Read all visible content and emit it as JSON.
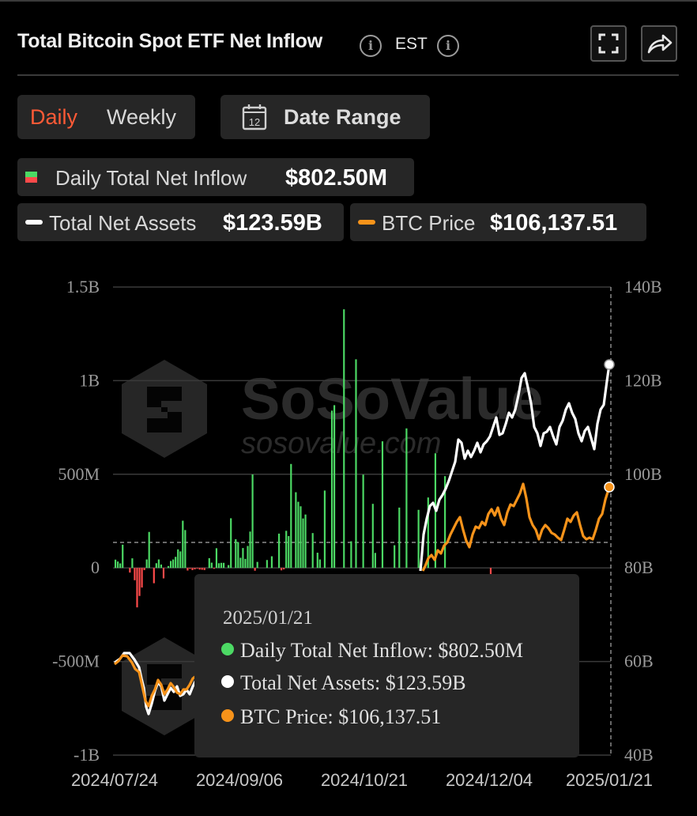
{
  "header": {
    "title": "Total Bitcoin Spot ETF Net Inflow",
    "timezone": "EST",
    "info_icon": "i"
  },
  "toggle": {
    "daily": "Daily",
    "weekly": "Weekly",
    "active": "daily"
  },
  "date_range": {
    "label": "Date Range",
    "calendar_day": "12"
  },
  "legend": {
    "daily_inflow": {
      "label": "Daily Total Net Inflow",
      "value": "$802.50M"
    },
    "total_assets": {
      "label": "Total Net Assets",
      "value": "$123.59B"
    },
    "btc_price": {
      "label": "BTC Price",
      "value": "$106,137.51"
    }
  },
  "watermark": {
    "brand": "SoSoValue",
    "url": "sosovalue.com"
  },
  "tooltip": {
    "date": "2025/01/21",
    "rows": [
      {
        "text": "Daily Total Net Inflow: $802.50M"
      },
      {
        "text": "Total Net Assets: $123.59B"
      },
      {
        "text": "BTC Price: $106,137.51"
      }
    ]
  },
  "colors": {
    "positive": "#4cd964",
    "negative": "#ff4a4a",
    "assets_line": "#ffffff",
    "price_line": "#f7931a",
    "active_toggle": "#ff5a36"
  },
  "chart_data": {
    "type": "bar",
    "left_axis": {
      "ticks": [
        "1.5B",
        "1B",
        "500M",
        "0",
        "-500M",
        "-1B"
      ],
      "range": [
        -1.0,
        1.5
      ],
      "unit": "B"
    },
    "right_axis": {
      "ticks": [
        "140B",
        "120B",
        "100B",
        "80B",
        "60B",
        "40B"
      ],
      "range": [
        40,
        140
      ],
      "unit": "B"
    },
    "x_labels": [
      "2024/07/24",
      "2024/09/06",
      "2024/10/21",
      "2024/12/04",
      "2025/01/21"
    ],
    "series": [
      {
        "name": "Daily Total Net Inflow",
        "kind": "bar",
        "values": [
          0.044,
          0.034,
          0.024,
          0.124,
          0.0,
          0.0,
          -0.025,
          0.051,
          -0.066,
          -0.211,
          -0.15,
          -0.105,
          -0.012,
          0.045,
          0.192,
          0.0,
          -0.082,
          0.025,
          0.045,
          0.018,
          -0.056,
          0.0,
          0.01,
          0.037,
          0.045,
          0.059,
          0.099,
          0.088,
          0.252,
          0.202,
          -0.014,
          -0.005,
          -0.012,
          -0.008,
          -0.004,
          -0.009,
          -0.01,
          -0.012,
          0.0,
          0.052,
          0.028,
          -0.005,
          0.105,
          0.025,
          0.027,
          0.027,
          0.0,
          0.015,
          0.265,
          0.0,
          0.153,
          0.138,
          0.054,
          0.106,
          0.048,
          0.117,
          0.194,
          0.499,
          -0.015,
          0.032,
          0.0,
          0.0,
          0.0,
          0.042,
          0.0,
          0.062,
          0.0,
          0.0,
          0.183,
          -0.013,
          -0.008,
          0.198,
          0.17,
          0.555,
          0.0,
          0.404,
          0.353,
          0.329,
          0.264,
          0.285,
          0.0,
          0.0,
          0.186,
          0.0,
          0.081,
          0.045,
          0.0,
          0.413,
          0.0,
          0.0,
          0.84,
          0.869,
          0.0,
          0.0,
          0.0,
          1.381,
          -0.0,
          0.0,
          0.142,
          0.0,
          1.114,
          0.0,
          0.0,
          0.498,
          0.0,
          0.0,
          0.0,
          0.342,
          0.08,
          0.0,
          0.0,
          0.676,
          0.0,
          0.0,
          0.0,
          0.0,
          0.121,
          0.0,
          0.322,
          0.0,
          0.0,
          0.745,
          0.0,
          0.0,
          0.0,
          0.0,
          0.31,
          0.0,
          0.0,
          0.0,
          0.376,
          0.0,
          0.0,
          0.612,
          0.0,
          0.0,
          0.0,
          0.49,
          0.0,
          0.0,
          0.0,
          0.0,
          0.0,
          0.0,
          0.0,
          0.0,
          0.0,
          0.0,
          0.0,
          0.0,
          0.0,
          0.0,
          0.0,
          0.0,
          0.0,
          0.0,
          -0.568,
          0.0,
          0.0,
          0.0,
          0.0,
          -0.0,
          0.0,
          0.0,
          0.0,
          0.0,
          0.0,
          0.0,
          0.0,
          0.0,
          0.0,
          0.0,
          -0.0,
          0.0,
          0.0,
          0.0,
          0.0,
          0.0,
          0.0,
          0.0,
          0.0,
          0.0,
          0.0,
          0.0,
          0.0,
          0.0,
          0.0,
          0.0,
          0.0,
          0.0,
          0.0,
          0.0,
          0.0,
          0.0,
          0.0,
          0.0,
          0.0,
          0.0,
          0.0,
          0.0,
          0.0,
          0.0,
          0.0,
          0.0,
          0.0
        ]
      },
      {
        "name": "Total Net Assets",
        "kind": "line"
      },
      {
        "name": "BTC Price",
        "kind": "line"
      }
    ]
  }
}
